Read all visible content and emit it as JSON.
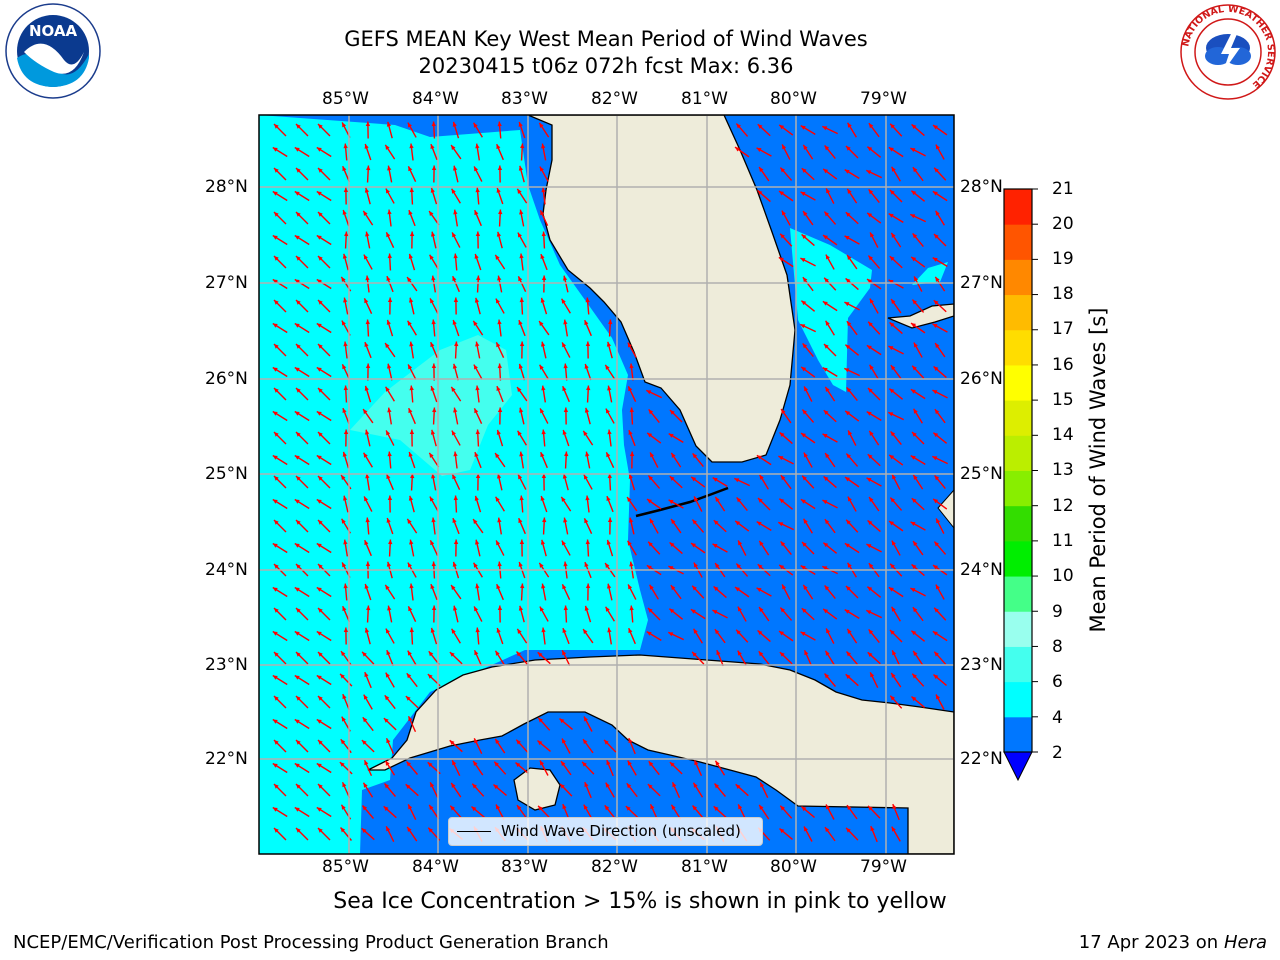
{
  "header": {
    "title_line1": "GEFS MEAN Key West Mean Period of Wind Waves",
    "title_line2": "20230415 t06z 072h fcst   Max: 6.36"
  },
  "logos": {
    "left": {
      "text": "NOAA",
      "icon": "noaa-logo-icon"
    },
    "right": {
      "text": "NATIONAL WEATHER SERVICE",
      "icon": "nws-logo-icon"
    }
  },
  "map": {
    "lon_labels": [
      "85°W",
      "84°W",
      "83°W",
      "82°W",
      "81°W",
      "80°W",
      "79°W"
    ],
    "lat_labels": [
      "28°N",
      "27°N",
      "26°N",
      "25°N",
      "24°N",
      "23°N",
      "22°N"
    ],
    "arrow_color": "#ff0000",
    "land_color": "#eeecda",
    "gridline_color": "#b0b0b0"
  },
  "legend": {
    "label": "Wind Wave Direction (unscaled)"
  },
  "colorbar": {
    "title": "Mean Period of Wind Waves [s]",
    "ticks": [
      "2",
      "4",
      "6",
      "8",
      "9",
      "10",
      "11",
      "12",
      "13",
      "14",
      "15",
      "16",
      "17",
      "18",
      "19",
      "20",
      "21"
    ],
    "colors": [
      "#0077ff",
      "#00ffff",
      "#44ffee",
      "#99ffee",
      "#44ff88",
      "#00ee00",
      "#33dd00",
      "#88ee00",
      "#bbee00",
      "#ddee00",
      "#ffff00",
      "#ffdd00",
      "#ffbb00",
      "#ff8800",
      "#ff5500",
      "#ff2200",
      "#ff0000"
    ],
    "extend_color": "#0000ff"
  },
  "chart_data": {
    "type": "heatmap",
    "variable": "Mean Period of Wind Waves",
    "units": "s",
    "max": 6.36,
    "lon_range": [
      -86.0,
      -78.3
    ],
    "lat_range": [
      21.0,
      28.75
    ],
    "level_bounds": [
      2,
      4,
      6,
      8,
      9,
      10,
      11,
      12,
      13,
      14,
      15,
      16,
      17,
      18,
      19,
      20,
      21
    ],
    "regions": [
      {
        "area": "Eastern Gulf of Mexico",
        "range_s": "4-6"
      },
      {
        "area": "Central Gulf patch near 25.5N 84W",
        "range_s": "6-8"
      },
      {
        "area": "Florida Straits and Atlantic",
        "range_s": "2-4"
      }
    ]
  },
  "footer": {
    "sea_ice_note": "Sea Ice Concentration > 15% is shown in pink to yellow",
    "left": "NCEP/EMC/Verification Post Processing Product Generation Branch",
    "right_prefix": "17 Apr 2023 on ",
    "right_machine": "Hera"
  }
}
